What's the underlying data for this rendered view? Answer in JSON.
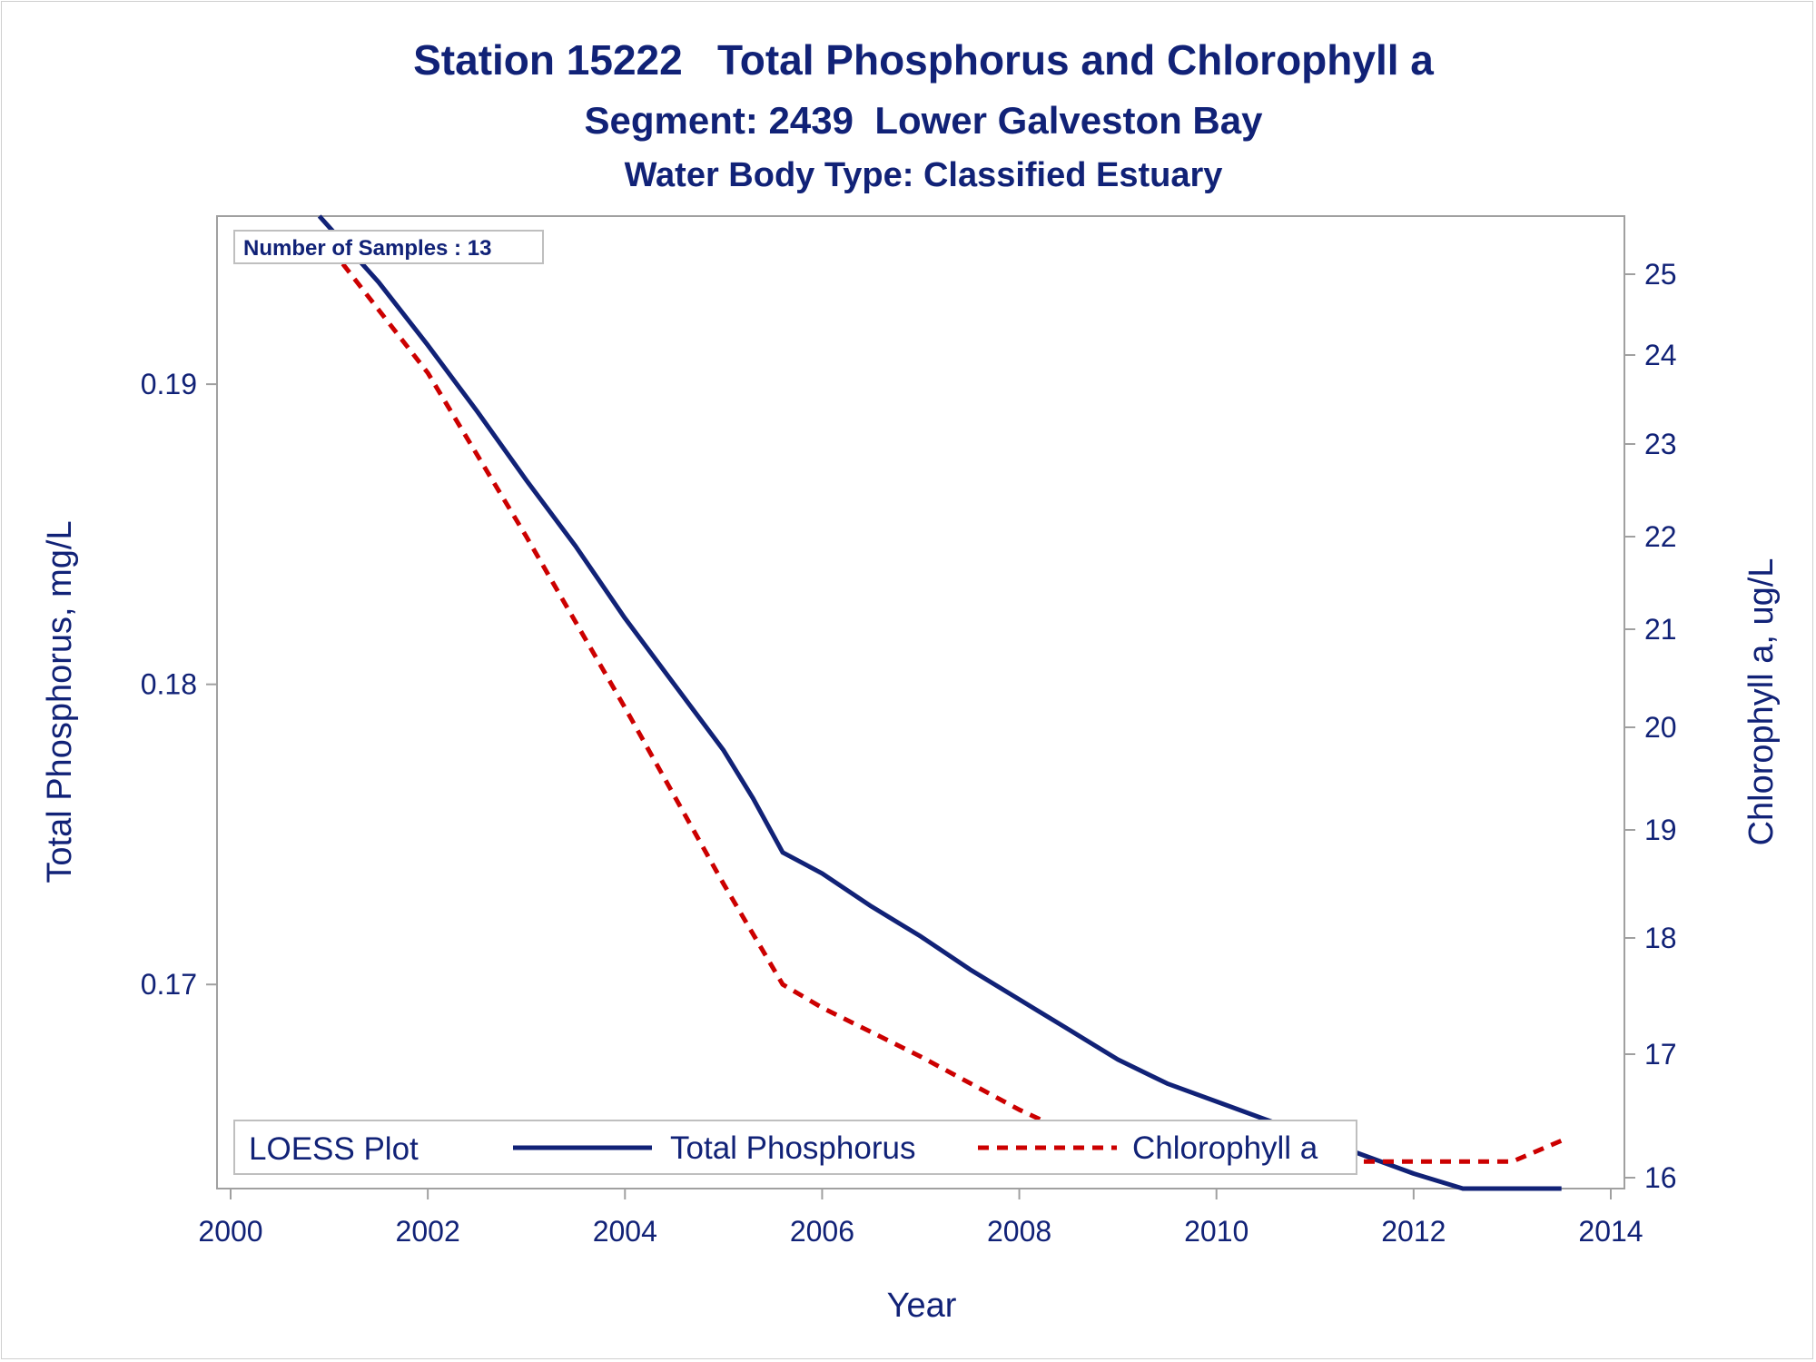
{
  "chart_data": {
    "type": "line",
    "title": "Station 15222   Total Phosphorus and Chlorophyll a",
    "subtitle": "Segment: 2439  Lower Galveston Bay",
    "subtitle2": "Water Body Type: Classified Estuary",
    "xlabel": "Year",
    "ylabel": "Total Phosphorus, mg/L",
    "y2label": "Chlorophyll a, ug/L",
    "xlim": [
      2000,
      2014
    ],
    "ylim": [
      0.1632,
      0.1956
    ],
    "y2lim": [
      15.95,
      25.8
    ],
    "x_ticks": [
      "2000",
      "2002",
      "2004",
      "2006",
      "2008",
      "2010",
      "2012",
      "2014"
    ],
    "y_ticks": [
      "0.17",
      "0.18",
      "0.19"
    ],
    "y2_ticks": [
      "16",
      "17",
      "18",
      "19",
      "20",
      "21",
      "22",
      "23",
      "24",
      "25"
    ],
    "inset": "Number of Samples : 13",
    "legend": {
      "title": "LOESS Plot",
      "position": "bottom-inside"
    },
    "grid": false,
    "series": [
      {
        "name": "Total Phosphorus",
        "axis": "left",
        "color": "#112277",
        "style": "solid",
        "x": [
          2000.9,
          2001.5,
          2002.0,
          2002.5,
          2003.0,
          2003.5,
          2004.0,
          2004.5,
          2005.0,
          2005.3,
          2005.6,
          2006.0,
          2006.5,
          2007.0,
          2007.5,
          2008.0,
          2008.5,
          2009.0,
          2009.5,
          2010.0,
          2010.5,
          2011.0,
          2011.5,
          2012.0,
          2012.5,
          2013.0,
          2013.5
        ],
        "y": [
          0.1956,
          0.1934,
          0.1913,
          0.1891,
          0.1868,
          0.1846,
          0.1822,
          0.18,
          0.1778,
          0.1762,
          0.1744,
          0.1737,
          0.1726,
          0.1716,
          0.1705,
          0.1695,
          0.1685,
          0.1675,
          0.1667,
          0.1661,
          0.1655,
          0.1649,
          0.1643,
          0.1637,
          0.163,
          0.1624,
          0.1618
        ]
      },
      {
        "name": "Chlorophyll a",
        "axis": "right",
        "color": "#cc0000",
        "style": "dashed",
        "x": [
          2000.9,
          2002.0,
          2003.0,
          2004.0,
          2005.0,
          2005.6,
          2006.0,
          2007.0,
          2008.0,
          2009.0,
          2009.4,
          2010.0,
          2011.0,
          2012.0,
          2013.0,
          2013.5
        ],
        "y": [
          25.5,
          23.8,
          22.0,
          20.2,
          18.5,
          17.6,
          17.4,
          16.98,
          16.55,
          16.18,
          16.13,
          16.13,
          16.13,
          16.13,
          16.13,
          16.3
        ]
      }
    ]
  }
}
